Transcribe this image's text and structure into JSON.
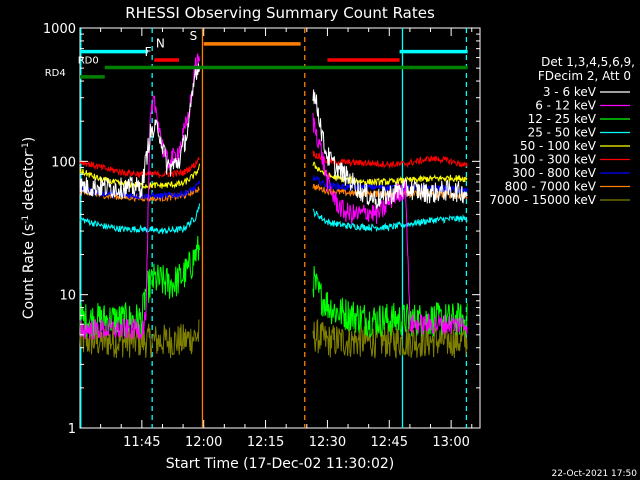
{
  "chart_data": {
    "type": "line",
    "title": "RHESSI Observing Summary Count Rates",
    "xlabel": "Start Time (17-Dec-02 11:30:02)",
    "ylabel_main": "Count Rate (s",
    "ylabel_sup1": "-1",
    "ylabel_mid": " detector",
    "ylabel_sup2": "-1",
    "ylabel_end": ")",
    "y_scale": "log",
    "ylim": [
      1,
      1000
    ],
    "xlim_minutes": [
      0,
      97
    ],
    "x_ticks": [
      {
        "m": 15,
        "label": "11:45"
      },
      {
        "m": 30,
        "label": "12:00"
      },
      {
        "m": 45,
        "label": "12:15"
      },
      {
        "m": 60,
        "label": "12:30"
      },
      {
        "m": 75,
        "label": "12:45"
      },
      {
        "m": 90,
        "label": "13:00"
      }
    ],
    "y_ticks": [
      {
        "v": 1,
        "label": "1"
      },
      {
        "v": 10,
        "label": "10"
      },
      {
        "v": 100,
        "label": "100"
      },
      {
        "v": 1000,
        "label": "1000"
      }
    ],
    "legend_header": [
      "Det 1,3,4,5,6,9,",
      "FDecim 2, Att 0"
    ],
    "series": [
      {
        "name": "3 - 6 keV",
        "color": "#ffffff",
        "seg1": [
          [
            0,
            65
          ],
          [
            10,
            63
          ],
          [
            15,
            64
          ],
          [
            17,
            160
          ],
          [
            19,
            180
          ],
          [
            21,
            95
          ],
          [
            22,
            90
          ],
          [
            24,
            100
          ],
          [
            26,
            165
          ],
          [
            27,
            260
          ],
          [
            28,
            480
          ],
          [
            29,
            520
          ]
        ],
        "seg2": [
          [
            56.5,
            340
          ],
          [
            58,
            220
          ],
          [
            59,
            140
          ],
          [
            60,
            110
          ],
          [
            62,
            90
          ],
          [
            64,
            80
          ],
          [
            66,
            70
          ],
          [
            68,
            60
          ],
          [
            70,
            55
          ],
          [
            72,
            52
          ],
          [
            74,
            55
          ],
          [
            76,
            58
          ],
          [
            78,
            62
          ],
          [
            80,
            62
          ],
          [
            82,
            60
          ],
          [
            84,
            58
          ],
          [
            86,
            58
          ],
          [
            88,
            60
          ],
          [
            90,
            60
          ],
          [
            94,
            58
          ]
        ]
      },
      {
        "name": "6 - 12 keV",
        "color": "#ff00ff",
        "seg1": [
          [
            0,
            5.5
          ],
          [
            15,
            5.5
          ],
          [
            16,
            7
          ],
          [
            17,
            200
          ],
          [
            18,
            280
          ],
          [
            19,
            200
          ],
          [
            20,
            130
          ],
          [
            21,
            100
          ],
          [
            22,
            100
          ],
          [
            24,
            120
          ],
          [
            26,
            200
          ],
          [
            27,
            300
          ],
          [
            28,
            520
          ],
          [
            29,
            580
          ]
        ],
        "seg2": [
          [
            56.5,
            200
          ],
          [
            58,
            140
          ],
          [
            59,
            100
          ],
          [
            60,
            70
          ],
          [
            62,
            50
          ],
          [
            64,
            42
          ],
          [
            66,
            40
          ],
          [
            68,
            40
          ],
          [
            70,
            42
          ],
          [
            72,
            40
          ],
          [
            74,
            45
          ],
          [
            76,
            55
          ],
          [
            78,
            60
          ],
          [
            79,
            62
          ],
          [
            80,
            6
          ],
          [
            84,
            6
          ],
          [
            88,
            6
          ],
          [
            94,
            6
          ]
        ]
      },
      {
        "name": "12 - 25 keV",
        "color": "#00ff00",
        "seg1": [
          [
            0,
            6.5
          ],
          [
            15,
            6.5
          ],
          [
            16,
            11
          ],
          [
            18,
            13
          ],
          [
            20,
            12.5
          ],
          [
            22,
            12
          ],
          [
            24,
            13
          ],
          [
            26,
            15
          ],
          [
            27,
            17
          ],
          [
            28,
            20
          ],
          [
            29,
            22
          ]
        ],
        "seg2": [
          [
            56.5,
            13
          ],
          [
            58,
            10
          ],
          [
            60,
            8.5
          ],
          [
            62,
            7.5
          ],
          [
            66,
            7
          ],
          [
            70,
            6.5
          ],
          [
            75,
            6.5
          ],
          [
            80,
            6.5
          ],
          [
            85,
            6.5
          ],
          [
            90,
            6.5
          ],
          [
            94,
            6.5
          ]
        ]
      },
      {
        "name": "25 - 50 keV",
        "color": "#00ffff",
        "seg1": [
          [
            0,
            37
          ],
          [
            5,
            33
          ],
          [
            10,
            31
          ],
          [
            15,
            31
          ],
          [
            20,
            30
          ],
          [
            25,
            31
          ],
          [
            28,
            38
          ],
          [
            29,
            48
          ]
        ],
        "seg2": [
          [
            56.5,
            42
          ],
          [
            60,
            35
          ],
          [
            64,
            33
          ],
          [
            70,
            32
          ],
          [
            75,
            32
          ],
          [
            80,
            34
          ],
          [
            85,
            36
          ],
          [
            90,
            37
          ],
          [
            94,
            37
          ]
        ]
      },
      {
        "name": "50 - 100 keV",
        "color": "#ffff00",
        "seg1": [
          [
            0,
            85
          ],
          [
            5,
            73
          ],
          [
            10,
            68
          ],
          [
            15,
            66
          ],
          [
            20,
            66
          ],
          [
            25,
            68
          ],
          [
            28,
            80
          ],
          [
            29,
            92
          ]
        ],
        "seg2": [
          [
            56.5,
            95
          ],
          [
            60,
            78
          ],
          [
            65,
            72
          ],
          [
            70,
            70
          ],
          [
            75,
            70
          ],
          [
            80,
            72
          ],
          [
            85,
            74
          ],
          [
            90,
            75
          ],
          [
            94,
            74
          ]
        ]
      },
      {
        "name": "100 - 300 keV",
        "color": "#ff0000",
        "seg1": [
          [
            0,
            100
          ],
          [
            5,
            90
          ],
          [
            10,
            83
          ],
          [
            15,
            80
          ],
          [
            20,
            80
          ],
          [
            25,
            82
          ],
          [
            28,
            95
          ],
          [
            29,
            110
          ]
        ],
        "seg2": [
          [
            56.5,
            115
          ],
          [
            60,
            100
          ],
          [
            65,
            98
          ],
          [
            70,
            97
          ],
          [
            75,
            95
          ],
          [
            78,
            95
          ],
          [
            82,
            100
          ],
          [
            85,
            105
          ],
          [
            88,
            103
          ],
          [
            91,
            98
          ],
          [
            94,
            92
          ]
        ]
      },
      {
        "name": "300 - 800 keV",
        "color": "#0000ff",
        "seg1": [
          [
            0,
            62
          ],
          [
            5,
            58
          ],
          [
            10,
            56
          ],
          [
            15,
            55
          ],
          [
            20,
            55
          ],
          [
            25,
            57
          ],
          [
            28,
            63
          ],
          [
            29,
            70
          ]
        ],
        "seg2": [
          [
            56.5,
            75
          ],
          [
            60,
            66
          ],
          [
            65,
            64
          ],
          [
            70,
            64
          ],
          [
            75,
            64
          ],
          [
            80,
            63
          ],
          [
            85,
            63
          ],
          [
            90,
            62
          ],
          [
            94,
            60
          ]
        ]
      },
      {
        "name": "800 - 7000 keV",
        "color": "#ff8000",
        "seg1": [
          [
            0,
            60
          ],
          [
            5,
            56
          ],
          [
            10,
            54
          ],
          [
            15,
            53
          ],
          [
            20,
            53
          ],
          [
            25,
            55
          ],
          [
            28,
            60
          ],
          [
            29,
            64
          ]
        ],
        "seg2": [
          [
            56.5,
            65
          ],
          [
            60,
            60
          ],
          [
            65,
            58
          ],
          [
            70,
            57
          ],
          [
            75,
            57
          ],
          [
            80,
            57
          ],
          [
            85,
            57
          ],
          [
            90,
            56
          ],
          [
            94,
            55
          ]
        ]
      },
      {
        "name": "7000 - 15000 keV",
        "color": "#808000",
        "seg1": [
          [
            0,
            4.5
          ],
          [
            8,
            4.5
          ],
          [
            15,
            4.5
          ],
          [
            20,
            4.5
          ],
          [
            25,
            4.5
          ],
          [
            29,
            5
          ]
        ],
        "seg2": [
          [
            56.5,
            5
          ],
          [
            60,
            4.5
          ],
          [
            70,
            4.5
          ],
          [
            80,
            4.5
          ],
          [
            90,
            4.5
          ],
          [
            94,
            4.5
          ]
        ]
      }
    ],
    "flags": [
      {
        "label": "N",
        "color": "#00ffff",
        "start": 0,
        "end": 16.5,
        "y": 665,
        "label_m": 19.5
      },
      {
        "label": "N",
        "color": "#00ffff",
        "start": 77.5,
        "end": 94,
        "y": 665,
        "label_m": null
      },
      {
        "label": "S",
        "color": "#ff8000",
        "start": 30,
        "end": 53.5,
        "y": 760,
        "label_m": 27.5
      },
      {
        "label": "F",
        "color": "#ff0000",
        "start": 18,
        "end": 24,
        "y": 575,
        "label_m": 16.5
      },
      {
        "label": "F",
        "color": "#ff0000",
        "start": 60,
        "end": 77.5,
        "y": 575,
        "label_m": null
      },
      {
        "label": "RD0",
        "color": "#008000",
        "start": 6,
        "end": 94,
        "y": 505,
        "label_m": 2
      },
      {
        "label": "RD4",
        "color": "#008000",
        "start": 0,
        "end": 6,
        "y": 430,
        "label_m": -6
      }
    ],
    "vlines": [
      {
        "m": 0.2,
        "color": "#00ffff",
        "dash": false
      },
      {
        "m": 17.5,
        "color": "#00ffff",
        "dash": true
      },
      {
        "m": 29.7,
        "color": "#ff8000",
        "dash": false
      },
      {
        "m": 54.5,
        "color": "#ff8000",
        "dash": true
      },
      {
        "m": 78.2,
        "color": "#00ffff",
        "dash": false
      },
      {
        "m": 93.7,
        "color": "#00ffff",
        "dash": true
      }
    ],
    "footer_date": "22-Oct-2021 17:50"
  }
}
